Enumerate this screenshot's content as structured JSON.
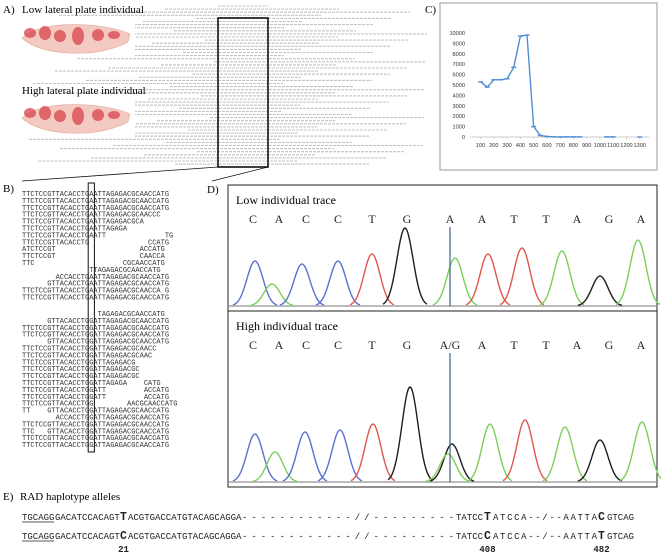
{
  "panels": {
    "a": {
      "label": "A)",
      "low_caption": "Low lateral plate individual",
      "high_caption": "High lateral plate individual"
    },
    "b": {
      "label": "B)",
      "sequences": [
        [
          "TTCTCCGTTACACCTGAATTAGAGACGCAACCATG",
          "TTCTCCGTTACACCTGAATTAGAGACGCAACCATG",
          "TTCTCCGTTACACCTGAATTAGAGACGCAACCATG",
          "TTCTCCGTTACACCTGAATTAGAGACGCAACCC",
          "TTCTCCGTTACACCTGAATTAGAGACGCA",
          "TTCTCCGTTACACCTGAATTAGAGA",
          "TTCTCCGTTACACCTGAATT              TG",
          "TTCTCCGTTACACCTG              CCATG",
          "ATCTCCGT                    ACCATG",
          "TTCTCCGT                    CAACCA",
          "TTC                     CGCAACCATG",
          "                TTAGAGACGCAACCATG",
          "        ACCACCTGAATTAGAGACGCAACCATG",
          "      GTTACACCTGAATTAGAGACGCAACCATG",
          "TTCTCCGTTACACCTGAATTAGAGACGCAACCA G",
          "TTCTCCGTTACACCTGAATTAGAGACGCAACCATG"
        ],
        [
          "                  TAGAGACGCAACCATG",
          "      GTTACACCTGGATTAGAGACGCAACCATG",
          "TTCTCCGTTACACCTGGATTAGAGACGCAACCATG",
          "TTCTCCGTTACACCTGGATTAGAGACGCAACCATG",
          "      GTTACACCTGGATTAGAGACGCAACCATG",
          "TTCTCCGTTACACCTGGATTAGAGACGCAACC",
          "TTCTCCGTTACACCTGGATTAGAGACGCAAC",
          "TTCTCCGTTACACCTGGATTAGAGACG",
          "TTCTCCGTTACACCTGGATTAGAGACGC",
          "TTCTCCGTTACACCTGGATTAGAGACGC",
          "TTCTCCGTTACACCTGGATTAGAGA    CATG",
          "TTCTCCGTTACACCTGGATT         ACCATG",
          "TTCTCCGTTACACCTGGATT         ACCATG",
          "TTCTCCGTTACACCTGG        AACGCAACCATG",
          "TT    GTTACACCTGGATTAGAGACGCAACCATG",
          "        ACCACCTGGATTAGAGACGCAACCATG",
          "TTCTCCGTTACACCTGGATTAGAGACGCAACCATG",
          "TTC   GTTACACCTGGATTAGAGACGCAACCATG",
          "TTCTCCGTTACACCTGGATTAGAGACGCAACCATG",
          "TTCTCCGTTACACCTGGATTAGAGACGCAACCATG"
        ]
      ]
    },
    "c": {
      "label": "C)"
    },
    "d": {
      "label": "D)",
      "low": {
        "title": "Low individual trace",
        "bases": [
          "C",
          "A",
          "C",
          "C",
          "T",
          "G",
          "A",
          "A",
          "T",
          "T",
          "A",
          "G",
          "A"
        ]
      },
      "high": {
        "title": "High individual trace",
        "bases": [
          "C",
          "A",
          "C",
          "C",
          "T",
          "G",
          "A/G",
          "A",
          "T",
          "T",
          "A",
          "G",
          "A"
        ]
      }
    },
    "e": {
      "label": "E)",
      "title": "RAD haplotype alleles",
      "alleles": [
        [
          "TGCAGG",
          "GACATCCACAGT",
          "T",
          "ACGTGACCATGTACAGCAGGA",
          "------------//---------",
          "TATCC",
          "T",
          "ATCCA--/--AATTA",
          "C",
          "GTCAG"
        ],
        [
          "TGCAGG",
          "GACATCCACAGT",
          "C",
          "ACGTGACCATGTACAGCAGGA",
          "------------//---------",
          "TATCC",
          "C",
          "ATCCA--/--AATTA",
          "T",
          "GTCAG"
        ]
      ],
      "positions": [
        "21",
        "408",
        "482"
      ]
    }
  },
  "chart_data": {
    "type": "line",
    "x": [
      100,
      150,
      200,
      250,
      300,
      350,
      400,
      450,
      500,
      550,
      600,
      650,
      700,
      750,
      800,
      850,
      900,
      950,
      1000,
      1050,
      1100,
      1150,
      1200,
      1250,
      1300
    ],
    "series": [
      {
        "color": "#4f8fd0",
        "values": [
          5300,
          4800,
          5500,
          5500,
          5600,
          6700,
          9700,
          9800,
          1000,
          150,
          50,
          10,
          10,
          10,
          10,
          10,
          null,
          null,
          null,
          10,
          10,
          null,
          null,
          null,
          0
        ]
      }
    ],
    "xlim": [
      20,
      1370
    ],
    "ylim": [
      0,
      10000
    ],
    "xticks": [
      100,
      200,
      300,
      400,
      500,
      600,
      700,
      800,
      900,
      1000,
      1100,
      1200,
      1300
    ],
    "yticks": [
      0,
      1000,
      2000,
      3000,
      4000,
      5000,
      6000,
      7000,
      8000,
      9000,
      10000
    ]
  }
}
